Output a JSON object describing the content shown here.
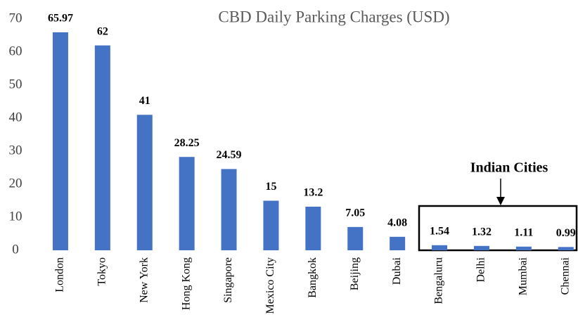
{
  "chart_data": {
    "type": "bar",
    "title": "CBD Daily Parking Charges (USD)",
    "categories": [
      "London",
      "Tokyo",
      "New York",
      "Hong Kong",
      "Singapore",
      "Mexico City",
      "Bangkok",
      "Beijing",
      "Dubai",
      "Bengaluru",
      "Delhi",
      "Mumbai",
      "Chennai"
    ],
    "values": [
      65.97,
      62,
      41,
      28.25,
      24.59,
      15,
      13.2,
      7.05,
      4.08,
      1.54,
      1.32,
      1.11,
      0.99
    ],
    "color": "#4472c4",
    "ylim": [
      0,
      70
    ],
    "yticks": [
      0,
      10,
      20,
      30,
      40,
      50,
      60,
      70
    ],
    "grid": false,
    "annotation": "Indian Cities"
  }
}
